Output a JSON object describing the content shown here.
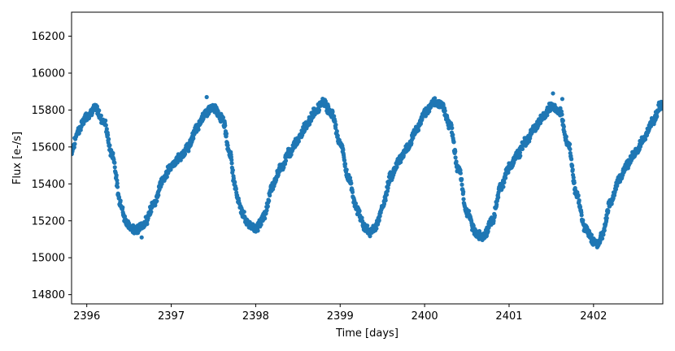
{
  "chart_data": {
    "type": "scatter",
    "title": "",
    "xlabel": "Time [days]",
    "ylabel": "Flux [e-/s]",
    "xlim": [
      2395.82,
      2402.82
    ],
    "ylim": [
      14750,
      16330
    ],
    "xticks": [
      2396,
      2397,
      2398,
      2399,
      2400,
      2401,
      2402
    ],
    "yticks": [
      14800,
      15000,
      15200,
      15400,
      15600,
      15800,
      16000,
      16200
    ],
    "grid": false,
    "legend": "none",
    "marker_color": "#1f77b4",
    "series": [
      {
        "x": [
          2395.82,
          2395.9,
          2396.0,
          2396.1,
          2396.2,
          2396.3,
          2396.4,
          2396.45,
          2396.5,
          2396.55,
          2396.6,
          2396.65,
          2396.7,
          2396.8,
          2396.9,
          2397.0,
          2397.1,
          2397.2,
          2397.3,
          2397.4,
          2397.45,
          2397.5,
          2397.6,
          2397.7,
          2397.75,
          2397.8,
          2397.85,
          2397.9,
          2397.95,
          2398.0,
          2398.05,
          2398.1,
          2398.2,
          2398.3,
          2398.4,
          2398.5,
          2398.6,
          2398.7,
          2398.8,
          2398.9,
          2399.0,
          2399.1,
          2399.2,
          2399.3,
          2399.35,
          2399.4,
          2399.45,
          2399.5,
          2399.6,
          2399.7,
          2399.8,
          2399.9,
          2400.0,
          2400.1,
          2400.15,
          2400.2,
          2400.3,
          2400.4,
          2400.5,
          2400.6,
          2400.65,
          2400.7,
          2400.8,
          2400.9,
          2401.0,
          2401.1,
          2401.2,
          2401.3,
          2401.4,
          2401.5,
          2401.6,
          2401.7,
          2401.8,
          2401.9,
          2402.0,
          2402.05,
          2402.1,
          2402.2,
          2402.3,
          2402.4,
          2402.5,
          2402.6,
          2402.7,
          2402.8
        ],
        "y": [
          15580,
          15690,
          15770,
          15810,
          15740,
          15560,
          15300,
          15210,
          15170,
          15160,
          15150,
          15170,
          15200,
          15300,
          15420,
          15500,
          15540,
          15600,
          15700,
          15780,
          15800,
          15810,
          15760,
          15560,
          15400,
          15300,
          15230,
          15190,
          15170,
          15160,
          15180,
          15230,
          15390,
          15490,
          15570,
          15640,
          15720,
          15790,
          15840,
          15780,
          15620,
          15430,
          15260,
          15160,
          15140,
          15150,
          15200,
          15280,
          15440,
          15530,
          15600,
          15690,
          15780,
          15840,
          15840,
          15830,
          15720,
          15480,
          15250,
          15140,
          15120,
          15120,
          15200,
          15380,
          15490,
          15560,
          15630,
          15700,
          15760,
          15820,
          15790,
          15620,
          15340,
          15160,
          15090,
          15080,
          15120,
          15300,
          15420,
          15510,
          15570,
          15650,
          15740,
          15830
        ],
        "outliers": [
          [
            2397.42,
            15870
          ],
          [
            2401.52,
            15890
          ],
          [
            2401.63,
            15860
          ],
          [
            2396.65,
            15110
          ]
        ]
      }
    ]
  }
}
